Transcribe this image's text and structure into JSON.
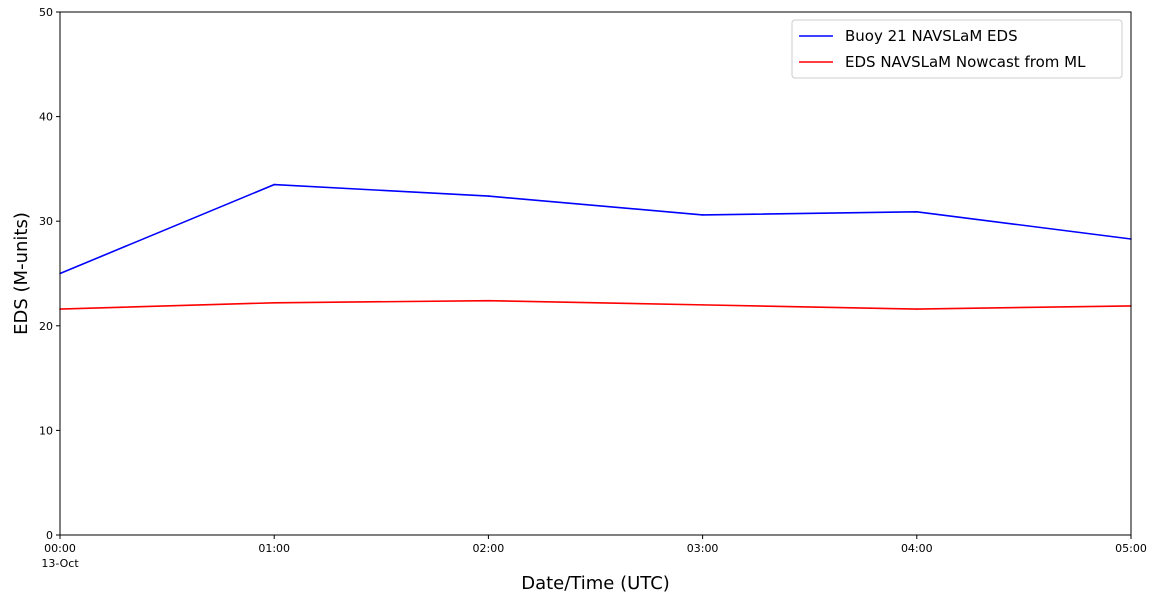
{
  "chart_data": {
    "type": "line",
    "xlabel": "Date/Time (UTC)",
    "ylabel": "EDS (M-units)",
    "x": [
      "00:00",
      "01:00",
      "02:00",
      "03:00",
      "04:00",
      "05:00"
    ],
    "x_date_sublabel": "13-Oct",
    "ylim": [
      0,
      50
    ],
    "yticks": [
      0,
      10,
      20,
      30,
      40,
      50
    ],
    "grid": false,
    "legend_position": "top-right",
    "series": [
      {
        "name": "Buoy 21 NAVSLaM EDS",
        "color": "#0000ff",
        "values": [
          25.0,
          33.5,
          32.4,
          30.6,
          30.9,
          28.3
        ]
      },
      {
        "name": "EDS NAVSLaM Nowcast from ML",
        "color": "#ff0000",
        "values": [
          21.6,
          22.2,
          22.4,
          22.0,
          21.6,
          21.9
        ]
      }
    ]
  }
}
